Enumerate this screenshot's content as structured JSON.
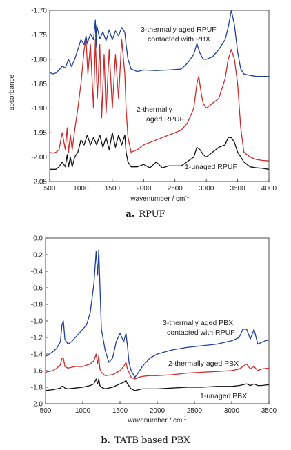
{
  "chart_data": [
    {
      "type": "line",
      "title": "",
      "xlabel": "wavenumber / cm",
      "xlabel_sup": "-1",
      "ylabel": "absorbance",
      "xlim": [
        500,
        4000
      ],
      "ylim": [
        -2.05,
        -1.7
      ],
      "xticks": [
        500,
        1000,
        1500,
        2000,
        2500,
        3000,
        3500,
        4000
      ],
      "yticks": [
        "-1.70",
        "-1.75",
        "-1.80",
        "-1.85",
        "-1.90",
        "-1.95",
        "-2.00",
        "-2.05"
      ],
      "grid": false,
      "series": [
        {
          "name": "3-thermally aged RPUF contacted with PBX",
          "color": "#1f3f99",
          "x": [
            500,
            550,
            600,
            650,
            700,
            750,
            800,
            850,
            900,
            950,
            1000,
            1050,
            1080,
            1100,
            1150,
            1200,
            1230,
            1240,
            1250,
            1300,
            1350,
            1400,
            1450,
            1500,
            1550,
            1600,
            1650,
            1700,
            1720,
            1750,
            1800,
            1900,
            2000,
            2200,
            2400,
            2600,
            2700,
            2800,
            2850,
            2900,
            2950,
            3000,
            3100,
            3200,
            3300,
            3350,
            3400,
            3450,
            3500,
            3550,
            3600,
            3700,
            3800,
            3900,
            4000
          ],
          "y": [
            -1.827,
            -1.83,
            -1.828,
            -1.822,
            -1.814,
            -1.818,
            -1.8,
            -1.815,
            -1.8,
            -1.78,
            -1.76,
            -1.77,
            -1.752,
            -1.768,
            -1.748,
            -1.76,
            -1.72,
            -1.775,
            -1.73,
            -1.758,
            -1.744,
            -1.762,
            -1.74,
            -1.76,
            -1.742,
            -1.752,
            -1.735,
            -1.745,
            -1.77,
            -1.8,
            -1.82,
            -1.825,
            -1.822,
            -1.823,
            -1.822,
            -1.82,
            -1.808,
            -1.79,
            -1.768,
            -1.788,
            -1.8,
            -1.8,
            -1.795,
            -1.78,
            -1.76,
            -1.735,
            -1.7,
            -1.73,
            -1.785,
            -1.82,
            -1.83,
            -1.833,
            -1.835,
            -1.835,
            -1.835
          ]
        },
        {
          "name": "2-thermally aged RPUF",
          "color": "#cc2a2a",
          "x": [
            500,
            550,
            600,
            650,
            700,
            750,
            780,
            800,
            830,
            860,
            900,
            950,
            1000,
            1050,
            1080,
            1110,
            1150,
            1200,
            1230,
            1260,
            1300,
            1330,
            1370,
            1400,
            1450,
            1500,
            1550,
            1600,
            1650,
            1700,
            1720,
            1750,
            1800,
            1900,
            2000,
            2200,
            2400,
            2600,
            2700,
            2800,
            2850,
            2880,
            2920,
            2950,
            3000,
            3100,
            3200,
            3300,
            3350,
            3400,
            3450,
            3500,
            3550,
            3600,
            3700,
            3800,
            3900,
            4000
          ],
          "y": [
            -1.99,
            -1.992,
            -1.99,
            -1.985,
            -1.95,
            -1.985,
            -1.94,
            -1.99,
            -1.955,
            -1.985,
            -1.945,
            -1.9,
            -1.85,
            -1.78,
            -1.76,
            -1.83,
            -1.77,
            -1.9,
            -1.76,
            -1.88,
            -1.77,
            -1.92,
            -1.79,
            -1.91,
            -1.78,
            -1.9,
            -1.79,
            -1.88,
            -1.76,
            -1.83,
            -1.9,
            -1.96,
            -1.99,
            -1.985,
            -1.975,
            -1.965,
            -1.955,
            -1.945,
            -1.93,
            -1.9,
            -1.85,
            -1.835,
            -1.87,
            -1.89,
            -1.9,
            -1.89,
            -1.88,
            -1.84,
            -1.8,
            -1.78,
            -1.8,
            -1.85,
            -1.94,
            -1.99,
            -2.0,
            -2.005,
            -2.007,
            -2.008
          ]
        },
        {
          "name": "1-unaged RPUF",
          "color": "#111111",
          "x": [
            500,
            600,
            650,
            700,
            750,
            780,
            800,
            830,
            860,
            900,
            950,
            1000,
            1050,
            1100,
            1150,
            1200,
            1250,
            1300,
            1350,
            1400,
            1450,
            1500,
            1550,
            1600,
            1650,
            1700,
            1720,
            1750,
            1800,
            1900,
            2000,
            2100,
            2200,
            2300,
            2400,
            2600,
            2800,
            2850,
            2900,
            2950,
            3000,
            3100,
            3200,
            3300,
            3350,
            3400,
            3450,
            3500,
            3600,
            3700,
            3800,
            3900,
            4000
          ],
          "y": [
            -2.025,
            -2.025,
            -2.02,
            -2.01,
            -2.02,
            -1.995,
            -2.02,
            -2.0,
            -2.02,
            -2.0,
            -1.99,
            -1.965,
            -1.975,
            -1.955,
            -1.975,
            -1.96,
            -1.975,
            -1.955,
            -1.98,
            -1.96,
            -1.985,
            -1.95,
            -1.98,
            -1.955,
            -1.975,
            -1.955,
            -1.99,
            -2.01,
            -2.02,
            -2.02,
            -2.015,
            -2.022,
            -2.01,
            -2.022,
            -2.018,
            -2.018,
            -2.0,
            -1.98,
            -1.985,
            -1.995,
            -2.0,
            -1.99,
            -1.98,
            -1.975,
            -1.96,
            -1.96,
            -1.97,
            -1.99,
            -2.01,
            -2.02,
            -2.022,
            -2.023,
            -2.025
          ]
        }
      ]
    },
    {
      "type": "line",
      "title": "",
      "xlabel": "wavenumber / cm",
      "xlabel_sup": "-1",
      "ylabel": "",
      "xlim": [
        500,
        3500
      ],
      "ylim": [
        -2.0,
        0.0
      ],
      "xticks": [
        500,
        1000,
        1500,
        2000,
        2500,
        3000,
        3500
      ],
      "yticks": [
        "0.0",
        "-0.2",
        "-0.4",
        "-0.6",
        "-0.8",
        "-1.0",
        "-1.2",
        "-1.4",
        "-1.6",
        "-1.8",
        "-2.0"
      ],
      "grid": false,
      "series": [
        {
          "name": "3-thermally aged PBX contacted with RPUF",
          "color": "#1f3f99",
          "x": [
            500,
            550,
            600,
            650,
            700,
            720,
            740,
            760,
            800,
            850,
            900,
            950,
            1000,
            1050,
            1100,
            1150,
            1180,
            1200,
            1215,
            1230,
            1250,
            1270,
            1300,
            1350,
            1400,
            1450,
            1500,
            1550,
            1580,
            1600,
            1620,
            1650,
            1700,
            1750,
            1800,
            1900,
            2000,
            2200,
            2400,
            2600,
            2800,
            3000,
            3100,
            3150,
            3200,
            3250,
            3300,
            3350,
            3400,
            3450,
            3500
          ],
          "y": [
            -1.43,
            -1.4,
            -1.37,
            -1.33,
            -1.25,
            -1.05,
            -1.0,
            -1.22,
            -1.28,
            -1.25,
            -1.2,
            -1.15,
            -1.1,
            -1.05,
            -0.9,
            -0.55,
            -0.16,
            -0.45,
            -0.14,
            -0.55,
            -1.1,
            -1.2,
            -1.35,
            -1.5,
            -1.45,
            -1.25,
            -1.15,
            -1.25,
            -1.15,
            -1.3,
            -1.5,
            -1.6,
            -1.68,
            -1.62,
            -1.55,
            -1.45,
            -1.4,
            -1.35,
            -1.32,
            -1.3,
            -1.28,
            -1.24,
            -1.2,
            -1.1,
            -1.1,
            -1.22,
            -1.1,
            -1.28,
            -1.26,
            -1.24,
            -1.23
          ]
        },
        {
          "name": "2-thermally aged PBX",
          "color": "#cc2a2a",
          "x": [
            500,
            600,
            650,
            700,
            720,
            740,
            760,
            800,
            900,
            1000,
            1100,
            1150,
            1180,
            1200,
            1215,
            1230,
            1250,
            1300,
            1400,
            1500,
            1550,
            1580,
            1600,
            1650,
            1700,
            1750,
            1800,
            1900,
            2000,
            2200,
            2400,
            2600,
            2800,
            3000,
            3100,
            3200,
            3250,
            3300,
            3350,
            3400,
            3500
          ],
          "y": [
            -1.62,
            -1.6,
            -1.57,
            -1.53,
            -1.45,
            -1.45,
            -1.55,
            -1.57,
            -1.55,
            -1.55,
            -1.52,
            -1.48,
            -1.4,
            -1.52,
            -1.42,
            -1.58,
            -1.62,
            -1.66,
            -1.65,
            -1.6,
            -1.55,
            -1.5,
            -1.58,
            -1.68,
            -1.7,
            -1.68,
            -1.67,
            -1.66,
            -1.66,
            -1.65,
            -1.63,
            -1.62,
            -1.61,
            -1.6,
            -1.58,
            -1.52,
            -1.58,
            -1.55,
            -1.6,
            -1.58,
            -1.57
          ]
        },
        {
          "name": "1-unaged PBX",
          "color": "#111111",
          "x": [
            500,
            600,
            700,
            720,
            740,
            760,
            800,
            900,
            1000,
            1100,
            1150,
            1180,
            1200,
            1215,
            1230,
            1250,
            1300,
            1400,
            1500,
            1550,
            1580,
            1600,
            1650,
            1700,
            1750,
            1800,
            2000,
            2200,
            2400,
            2600,
            2800,
            3000,
            3100,
            3200,
            3250,
            3300,
            3350,
            3400,
            3500
          ],
          "y": [
            -1.84,
            -1.83,
            -1.81,
            -1.79,
            -1.79,
            -1.81,
            -1.82,
            -1.81,
            -1.8,
            -1.78,
            -1.76,
            -1.7,
            -1.76,
            -1.7,
            -1.78,
            -1.8,
            -1.82,
            -1.8,
            -1.76,
            -1.74,
            -1.72,
            -1.76,
            -1.82,
            -1.84,
            -1.83,
            -1.82,
            -1.82,
            -1.81,
            -1.8,
            -1.8,
            -1.79,
            -1.79,
            -1.78,
            -1.76,
            -1.78,
            -1.76,
            -1.78,
            -1.78,
            -1.77
          ]
        }
      ]
    }
  ],
  "captions": [
    {
      "letter": "a.",
      "text": "RPUF"
    },
    {
      "letter": "b.",
      "text": "TATB based PBX"
    }
  ]
}
